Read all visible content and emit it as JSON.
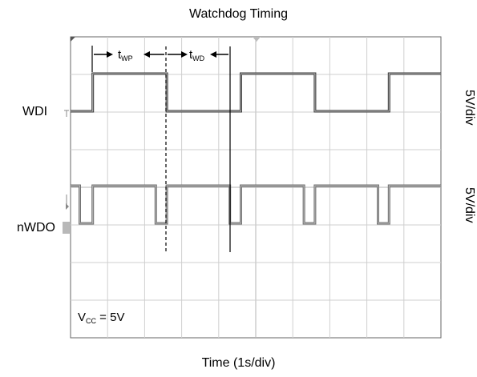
{
  "chart_data": {
    "type": "line",
    "title": "Watchdog Timing",
    "xlabel": "Time (1s/div)",
    "x_divisions": 10,
    "y_divisions": 8,
    "series": [
      {
        "name": "WDI",
        "scale": "5V/div",
        "levels": [
          "low",
          "high"
        ],
        "x": [
          0,
          0.6,
          0.6,
          2.6,
          2.6,
          4.6,
          4.6,
          6.6,
          6.6,
          8.6,
          8.6,
          10
        ],
        "y": [
          0,
          0,
          1,
          1,
          0,
          0,
          1,
          1,
          0,
          0,
          1,
          1
        ]
      },
      {
        "name": "nWDO",
        "scale": "5V/div",
        "levels": [
          "low",
          "high"
        ],
        "x": [
          0,
          0.25,
          0.25,
          0.6,
          0.6,
          2.3,
          2.3,
          2.6,
          2.6,
          4.3,
          4.3,
          4.6,
          4.6,
          6.3,
          6.3,
          6.6,
          6.6,
          8.3,
          8.3,
          8.6,
          8.6,
          10
        ],
        "y": [
          1,
          1,
          0,
          0,
          1,
          1,
          0,
          0,
          1,
          1,
          0,
          0,
          1,
          1,
          0,
          0,
          1,
          1,
          0,
          0,
          1,
          1
        ]
      }
    ],
    "annotations": [
      {
        "symbol": "t",
        "subscript": "WP"
      },
      {
        "symbol": "t",
        "subscript": "WD"
      },
      {
        "symbol": "V",
        "subscript": "CC",
        "suffix": " = 5V"
      }
    ],
    "grid": true
  }
}
